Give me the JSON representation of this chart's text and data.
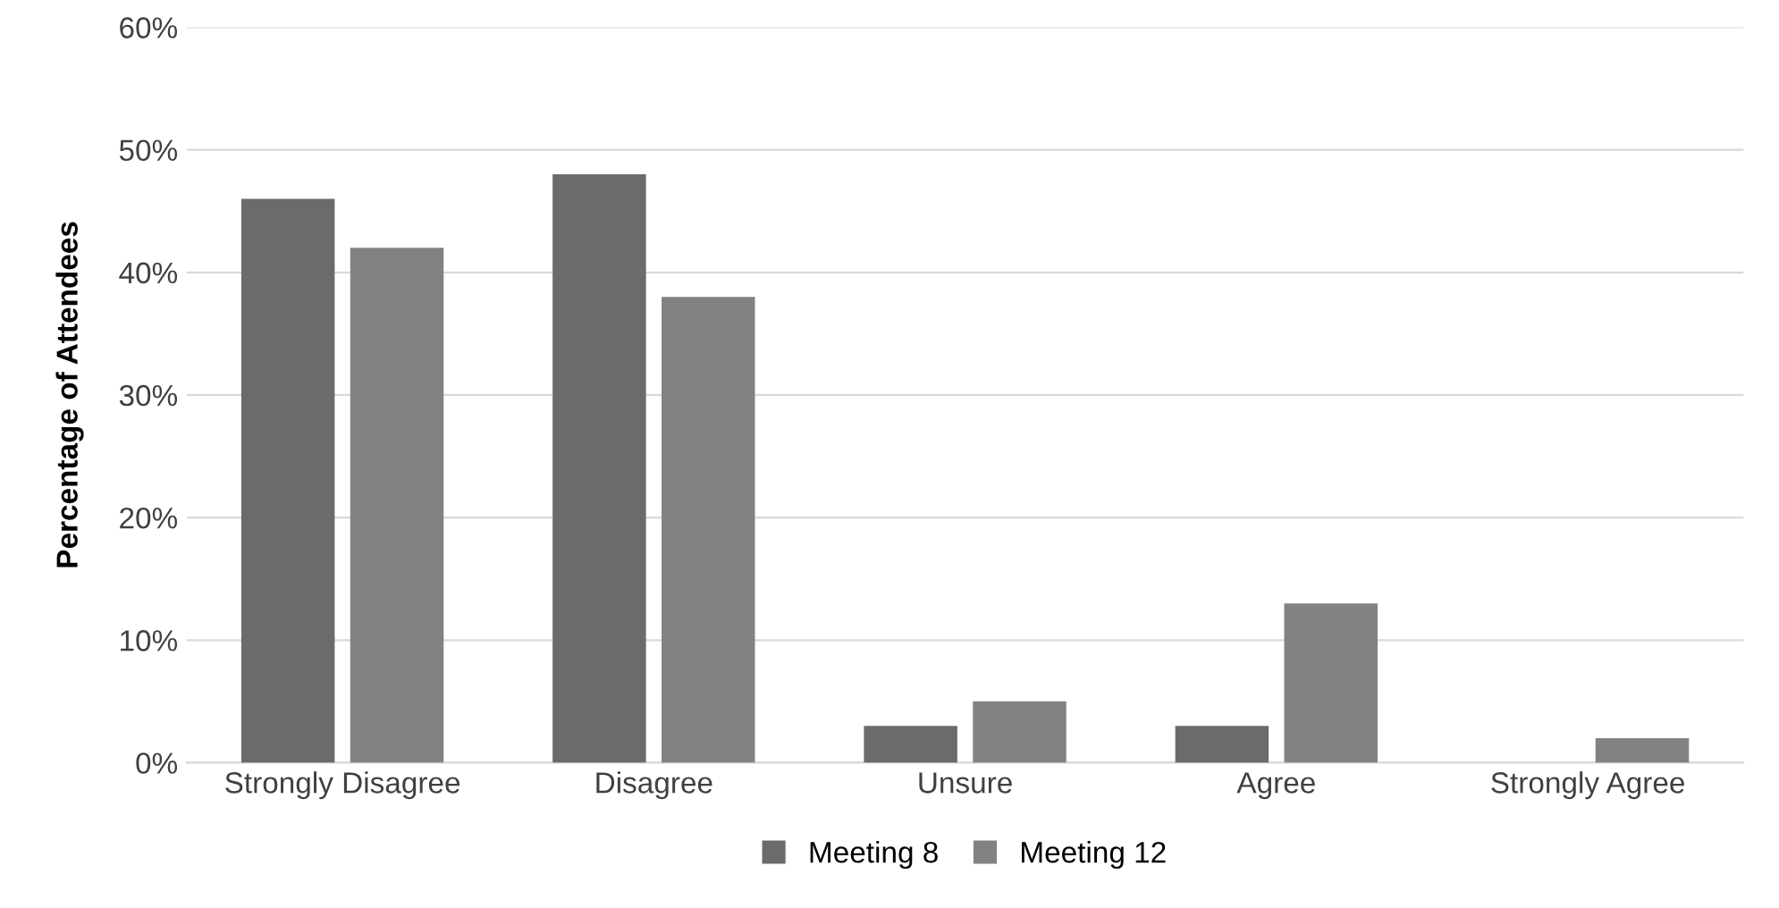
{
  "chart_data": {
    "type": "bar",
    "ylabel": "Percentage of Attendees",
    "categories": [
      "Strongly Disagree",
      "Disagree",
      "Unsure",
      "Agree",
      "Strongly Agree"
    ],
    "series": [
      {
        "name": "Meeting 8",
        "color": "#6b6b6b",
        "values": [
          46,
          48,
          3,
          3,
          0
        ]
      },
      {
        "name": "Meeting 12",
        "color": "#828282",
        "values": [
          42,
          38,
          5,
          13,
          2
        ]
      }
    ],
    "ylim": [
      0,
      60
    ],
    "yticks": [
      {
        "value": 0,
        "label": "0%"
      },
      {
        "value": 10,
        "label": "10%"
      },
      {
        "value": 20,
        "label": "20%"
      },
      {
        "value": 30,
        "label": "30%"
      },
      {
        "value": 40,
        "label": "40%"
      },
      {
        "value": 50,
        "label": "50%"
      },
      {
        "value": 60,
        "label": "60%"
      }
    ],
    "grid": "y",
    "legend": "bottom"
  }
}
